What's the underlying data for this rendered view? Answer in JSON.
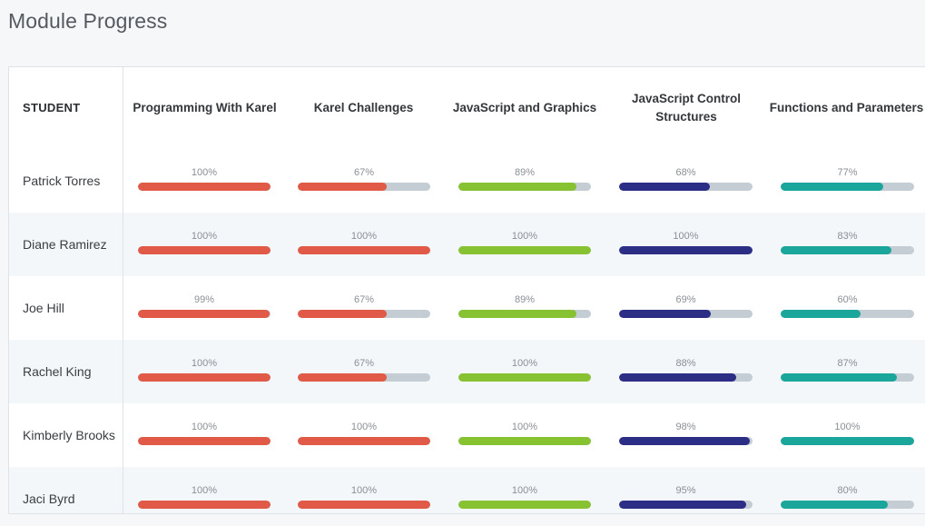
{
  "page": {
    "title": "Module Progress"
  },
  "table": {
    "student_header": "STUDENT",
    "columns": [
      {
        "label": "Programming With Karel",
        "color": "#e05a47"
      },
      {
        "label": "Karel Challenges",
        "color": "#e05a47"
      },
      {
        "label": "JavaScript and Graphics",
        "color": "#86c232"
      },
      {
        "label": "JavaScript Control Structures",
        "color": "#2c2e86"
      },
      {
        "label": "Functions and Parameters",
        "color": "#1aa69b"
      }
    ],
    "rows": [
      {
        "student": "Patrick Torres",
        "progress": [
          100,
          67,
          89,
          68,
          77
        ],
        "labels": [
          "100%",
          "67%",
          "89%",
          "68%",
          "77%"
        ]
      },
      {
        "student": "Diane Ramirez",
        "progress": [
          100,
          100,
          100,
          100,
          83
        ],
        "labels": [
          "100%",
          "100%",
          "100%",
          "100%",
          "83%"
        ]
      },
      {
        "student": "Joe Hill",
        "progress": [
          99,
          67,
          89,
          69,
          60
        ],
        "labels": [
          "99%",
          "67%",
          "89%",
          "69%",
          "60%"
        ]
      },
      {
        "student": "Rachel King",
        "progress": [
          100,
          67,
          100,
          88,
          87
        ],
        "labels": [
          "100%",
          "67%",
          "100%",
          "88%",
          "87%"
        ]
      },
      {
        "student": "Kimberly Brooks",
        "progress": [
          100,
          100,
          100,
          98,
          100
        ],
        "labels": [
          "100%",
          "100%",
          "100%",
          "98%",
          "100%"
        ]
      },
      {
        "student": "Jaci Byrd",
        "progress": [
          100,
          100,
          100,
          95,
          80
        ],
        "labels": [
          "100%",
          "100%",
          "100%",
          "95%",
          "80%"
        ]
      }
    ]
  }
}
